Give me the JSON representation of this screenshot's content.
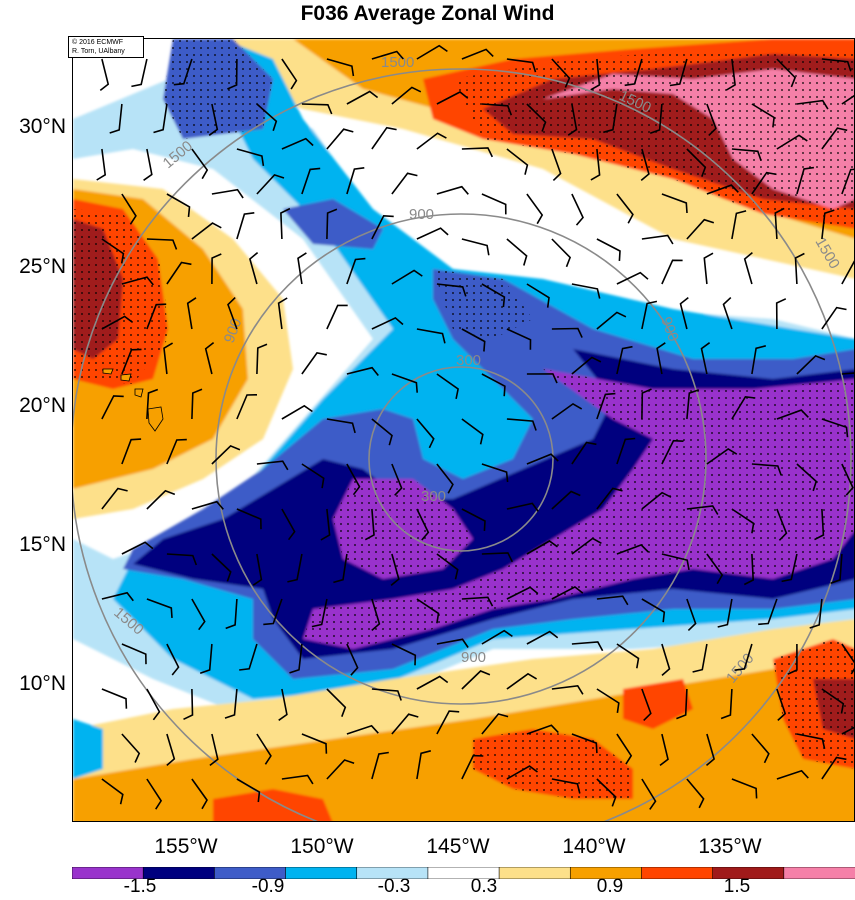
{
  "title": "F036 Average Zonal Wind",
  "credit": {
    "line1": "© 2016 ECMWF",
    "line2": "R. Torn, UAlbany"
  },
  "latitude_labels": [
    "30°N",
    "25°N",
    "20°N",
    "15°N",
    "10°N"
  ],
  "longitude_labels": [
    "155°W",
    "150°W",
    "145°W",
    "140°W",
    "135°W"
  ],
  "colorbar": {
    "colors": [
      "#9933cc",
      "#00007f",
      "#3e5cc8",
      "#00b3f0",
      "#b7e3f7",
      "#ffffff",
      "#fde08a",
      "#f7a000",
      "#ff4500",
      "#a01a1a",
      "#f580a8"
    ],
    "labels": [
      "-1.5",
      "-0.9",
      "-0.3",
      "0.3",
      "0.9",
      "1.5"
    ]
  },
  "range_ring_labels": [
    "300",
    "300",
    "900",
    "900",
    "900",
    "900",
    "1500",
    "1500",
    "1500",
    "1500",
    "1500",
    "1500"
  ]
}
